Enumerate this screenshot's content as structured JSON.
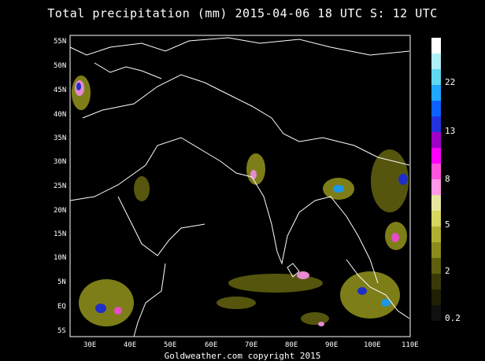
{
  "title": "Total precipitation (mm) 2015-04-06 18 UTC S: 12 UTC",
  "footer": "Goldweather.com copyright 2015",
  "lat_labels": [
    "55N",
    "50N",
    "45N",
    "40N",
    "35N",
    "30N",
    "25N",
    "20N",
    "15N",
    "10N",
    "5N",
    "EQ",
    "5S"
  ],
  "lon_labels": [
    "30E",
    "40E",
    "50E",
    "60E",
    "70E",
    "80E",
    "90E",
    "100E",
    "110E"
  ],
  "colorbar": {
    "labels": [
      "22",
      "13",
      "8",
      "5",
      "2",
      "0.2"
    ],
    "colors": [
      "#ffffff",
      "#b0f0f8",
      "#5fd8f0",
      "#1ea8ff",
      "#0c62ff",
      "#2233dd",
      "#a000c8",
      "#ff00ff",
      "#ff55dd",
      "#ff99e8",
      "#e6e6a0",
      "#d6d660",
      "#b0b030",
      "#8c8c1c",
      "#5f5f10",
      "#3a3a08",
      "#202004",
      "#101010"
    ]
  }
}
